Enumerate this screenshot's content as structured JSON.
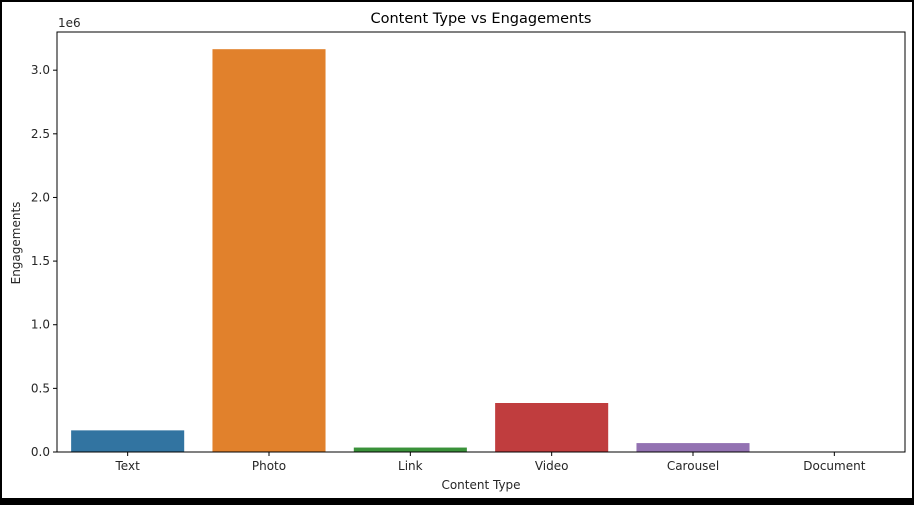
{
  "chart_data": {
    "type": "bar",
    "title": "Content Type vs Engagements",
    "xlabel": "Content Type",
    "ylabel": "Engagements",
    "y_offset_label": "1e6",
    "categories": [
      "Text",
      "Photo",
      "Link",
      "Video",
      "Carousel",
      "Document"
    ],
    "values": [
      170000,
      3165000,
      35000,
      385000,
      70000,
      0
    ],
    "colors": [
      "#3274a1",
      "#e1812c",
      "#3a923a",
      "#c03d3e",
      "#9372b2",
      "#845b53"
    ],
    "ylim": [
      0,
      3300000
    ],
    "yticks": [
      0,
      500000,
      1000000,
      1500000,
      2000000,
      2500000,
      3000000
    ],
    "ytick_labels": [
      "0.0",
      "0.5",
      "1.0",
      "1.5",
      "2.0",
      "2.5",
      "3.0"
    ],
    "grid": false,
    "legend": false
  }
}
